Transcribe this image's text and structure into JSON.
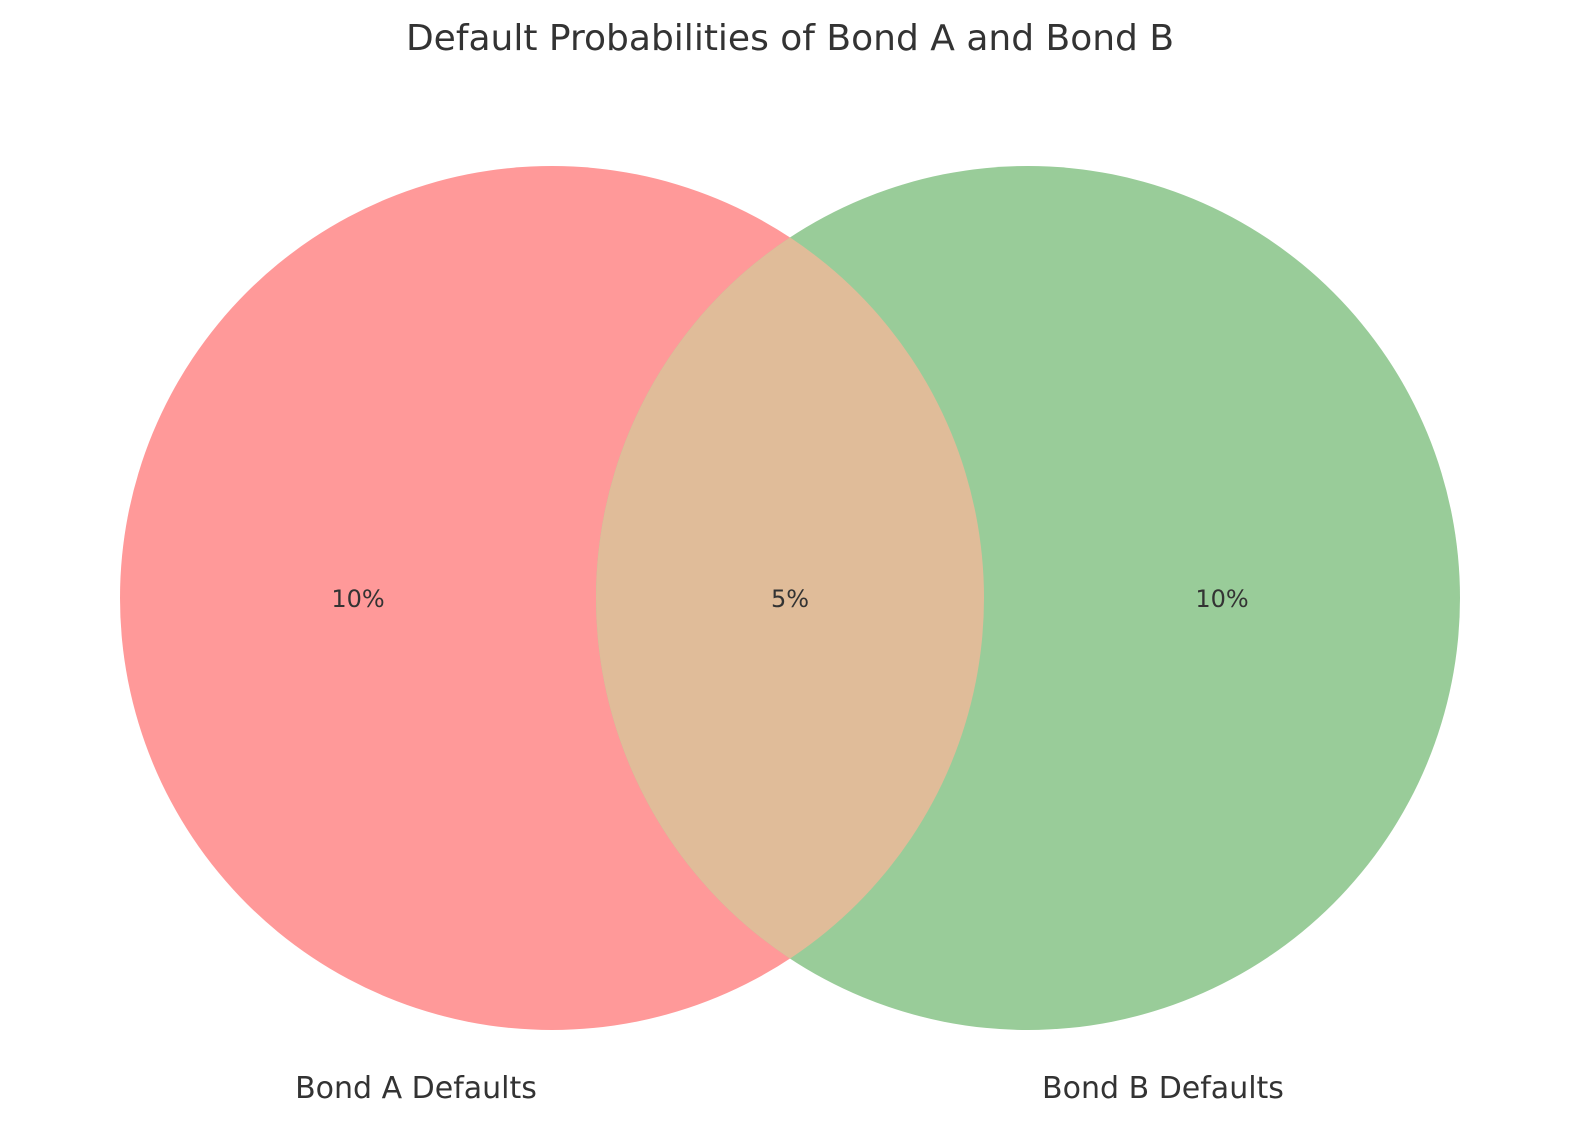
{
  "diagram": {
    "title": "Default Probabilities of Bond A and Bond B",
    "type": "venn-2",
    "sets": [
      {
        "id": "A",
        "label": "Bond A Defaults",
        "only_value": "10%",
        "color": "#ff9999"
      },
      {
        "id": "B",
        "label": "Bond B Defaults",
        "only_value": "10%",
        "color": "#99cc99"
      }
    ],
    "intersection": {
      "value": "5%",
      "color": "#e0bc99"
    }
  }
}
